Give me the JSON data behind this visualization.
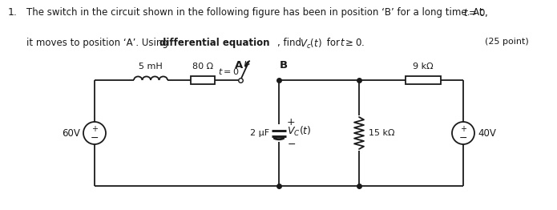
{
  "background_color": "#ffffff",
  "circuit_color": "#1a1a1a",
  "label_5mH": "5 mH",
  "label_80ohm": "80 Ω",
  "label_A": "A",
  "label_B": "B",
  "label_t0": "t = 0",
  "label_2uF": "2 μF",
  "label_Vc": "V_C(t)",
  "label_15kohm": "15 kΩ",
  "label_9kohm": "9 kΩ",
  "label_60V": "60V",
  "label_40V": "40V",
  "figwidth": 6.95,
  "figheight": 2.62,
  "dpi": 100
}
